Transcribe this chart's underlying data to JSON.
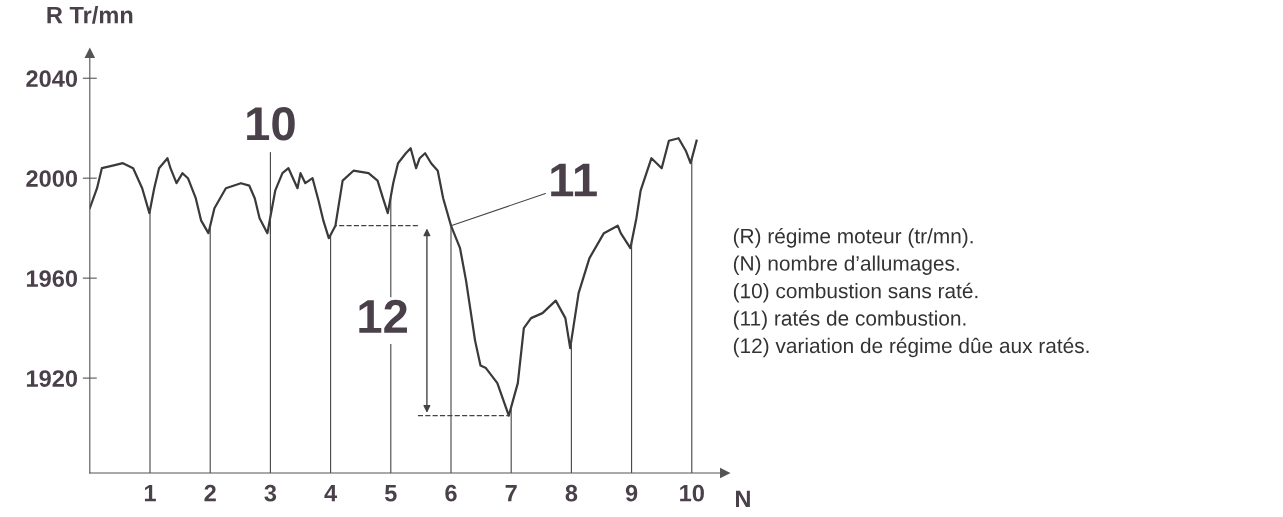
{
  "chart_data": {
    "type": "line",
    "xlabel": "N",
    "ylabel": "R Tr/mn",
    "x": [
      0,
      0.12,
      0.2,
      0.38,
      0.55,
      0.72,
      0.87,
      0.99,
      1.07,
      1.15,
      1.29,
      1.34,
      1.44,
      1.54,
      1.63,
      1.76,
      1.85,
      1.97,
      2.07,
      2.26,
      2.51,
      2.65,
      2.74,
      2.82,
      2.95,
      3.08,
      3.2,
      3.3,
      3.45,
      3.5,
      3.58,
      3.7,
      3.8,
      3.88,
      3.97,
      4.08,
      4.2,
      4.38,
      4.63,
      4.78,
      4.87,
      4.95,
      5.04,
      5.12,
      5.25,
      5.33,
      5.42,
      5.48,
      5.57,
      5.67,
      5.78,
      5.87,
      6.0,
      6.15,
      6.25,
      6.4,
      6.49,
      6.58,
      6.77,
      6.96,
      7.11,
      7.21,
      7.33,
      7.52,
      7.74,
      7.9,
      7.98,
      8.12,
      8.3,
      8.54,
      8.77,
      8.82,
      8.98,
      9.08,
      9.15,
      9.33,
      9.5,
      9.62,
      9.78,
      9.9,
      9.98,
      10.08
    ],
    "series": [
      {
        "color": "#3a3a3a",
        "values": [
          1988,
          1996,
          2004,
          2005,
          2006,
          2004,
          1996,
          1986,
          1996,
          2004,
          2008,
          2004,
          1998,
          2002,
          2000,
          1992,
          1983,
          1978,
          1988,
          1996,
          1998,
          1997,
          1992,
          1984,
          1978,
          1995,
          2002,
          2004,
          1996,
          2002,
          1998,
          2000,
          1991,
          1983,
          1976,
          1981,
          1999,
          2003,
          2002,
          1999,
          1992,
          1986,
          1998,
          2006,
          2010,
          2012,
          2004,
          2008,
          2010,
          2006,
          2003,
          1992,
          1981,
          1972,
          1959,
          1935,
          1925,
          1924,
          1918,
          1905,
          1918,
          1940,
          1944,
          1946,
          1951,
          1944,
          1932,
          1954,
          1968,
          1978,
          1981,
          1978,
          1972,
          1984,
          1995,
          2008,
          2004,
          2015,
          2016,
          2011,
          2006,
          2015
        ]
      }
    ],
    "xlim": [
      0,
      10.55
    ],
    "ylim": [
      1882,
      2050
    ],
    "xticks": [
      1,
      2,
      3,
      4,
      5,
      6,
      7,
      8,
      9,
      10
    ],
    "yticks": [
      1920,
      1960,
      2000,
      2040
    ],
    "ref_lines": [
      {
        "axis": "x",
        "value": 1,
        "label": null
      },
      {
        "axis": "x",
        "value": 2,
        "label": null
      },
      {
        "axis": "x",
        "value": 3,
        "label": null
      },
      {
        "axis": "x",
        "value": 4,
        "label": null
      },
      {
        "axis": "x",
        "value": 5,
        "label": null
      },
      {
        "axis": "x",
        "value": 6,
        "label": null
      },
      {
        "axis": "x",
        "value": 7,
        "label": null
      },
      {
        "axis": "x",
        "value": 8,
        "label": null
      },
      {
        "axis": "x",
        "value": 9,
        "label": null
      },
      {
        "axis": "x",
        "value": 10,
        "label": null
      },
      {
        "axis": "y",
        "value": 1981,
        "label": null,
        "line_style": "dashed"
      },
      {
        "axis": "y",
        "value": 1905,
        "label": null,
        "line_style": "dashed"
      }
    ],
    "annotations": [
      {
        "text": "10",
        "x": 3,
        "y": 1978
      },
      {
        "text": "11",
        "x": 6,
        "y": 1981
      },
      "12",
      "(R) régime moteur (tr/mn).",
      "(N) nombre d’allumages.",
      "(10) combustion sans raté.",
      "(11) ratés de combustion.",
      "(12) variation de régime dûe aux ratés."
    ],
    "grid": false,
    "marker": "none",
    "line_style": "solid"
  }
}
